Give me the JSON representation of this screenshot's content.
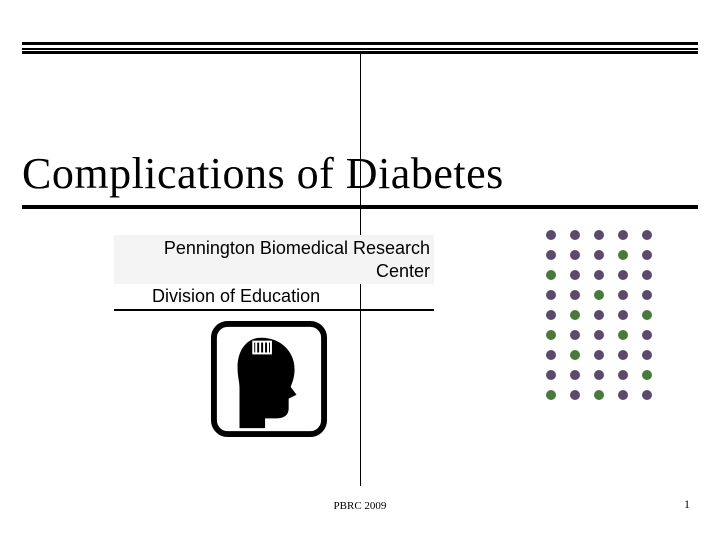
{
  "title": "Complications of Diabetes",
  "subtitle": {
    "line1": "Pennington Biomedical Research Center",
    "line2": "Division of Education",
    "highlight_bg": "#f4f4f4"
  },
  "footer": {
    "center": "PBRC 2009",
    "page": "1"
  },
  "dot_grid": {
    "rows": 9,
    "cols": 5,
    "dot_size": 10,
    "colors": [
      "#5c4a6e",
      "#5c4a6e",
      "#5c4a6e",
      "#5c4a6e",
      "#5c4a6e",
      "#5c4a6e",
      "#5c4a6e",
      "#5c4a6e",
      "#4a7a3a",
      "#5c4a6e",
      "#4a7a3a",
      "#5c4a6e",
      "#5c4a6e",
      "#5c4a6e",
      "#5c4a6e",
      "#5c4a6e",
      "#5c4a6e",
      "#4a7a3a",
      "#5c4a6e",
      "#5c4a6e",
      "#5c4a6e",
      "#4a7a3a",
      "#5c4a6e",
      "#5c4a6e",
      "#4a7a3a",
      "#4a7a3a",
      "#5c4a6e",
      "#5c4a6e",
      "#4a7a3a",
      "#5c4a6e",
      "#5c4a6e",
      "#4a7a3a",
      "#5c4a6e",
      "#5c4a6e",
      "#5c4a6e",
      "#5c4a6e",
      "#5c4a6e",
      "#5c4a6e",
      "#5c4a6e",
      "#4a7a3a",
      "#4a7a3a",
      "#5c4a6e",
      "#4a7a3a",
      "#5c4a6e",
      "#5c4a6e"
    ]
  },
  "colors": {
    "background": "#ffffff",
    "title_fontsize": 44,
    "subtitle_fontsize": 18,
    "footer_fontsize": 11
  },
  "logo": {
    "border_color": "#000000",
    "fill_color": "#000000"
  }
}
